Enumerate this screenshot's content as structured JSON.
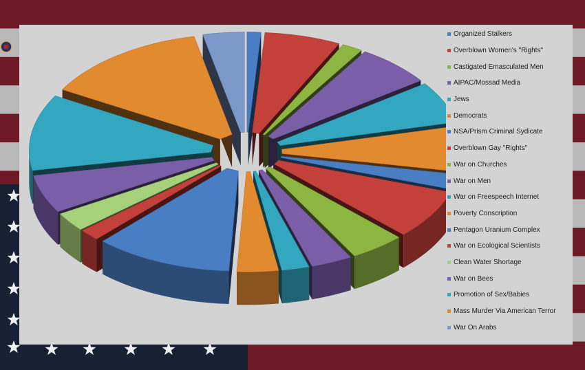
{
  "colors": {
    "panel": "#d3d3d3",
    "flag_red": "#6e1a26",
    "flag_white": "#b9b9b9",
    "flag_blue": "#1a2033"
  },
  "chart_data": {
    "type": "pie",
    "style": "exploded 3d pie",
    "title": "",
    "legend_position": "right",
    "categories": [
      "Organized Stalkers",
      "Overblown Women's \"Rights\"",
      "Castigated Emasculated Men",
      "AIPAC/Mossad Media",
      "Jews",
      "Democrats",
      "NSA/Prism Criminal Sydicate",
      "Overblown Gay \"Rights\"",
      "War on Churches",
      "War on Men",
      "War on Freespeech Internet",
      "Poverty Conscription",
      "Pentagon Uranium Complex",
      "War on Ecological Scientists",
      "Clean Water Shortage",
      "War on Bees",
      "Promotion of Sex/Babies",
      "Mass Murder Via American Terror",
      "War On Arabs"
    ],
    "values": [
      1.0,
      5.5,
      1.5,
      5.5,
      5.5,
      6.0,
      2.0,
      6.5,
      4.0,
      3.0,
      2.0,
      3.0,
      10.0,
      1.5,
      2.5,
      5.0,
      10.0,
      12.0,
      3.0
    ],
    "series_colors": [
      "#4a7ec4",
      "#c4403a",
      "#8db542",
      "#7a5ea8",
      "#33a6c0",
      "#e28a30",
      "#4a7ec4",
      "#c4403a",
      "#8db542",
      "#7a5ea8",
      "#33a6c0",
      "#e28a30",
      "#4a7ec4",
      "#c4403a",
      "#a6d07a",
      "#7a5ea8",
      "#33a6c0",
      "#e28a30",
      "#7d99cc"
    ]
  }
}
